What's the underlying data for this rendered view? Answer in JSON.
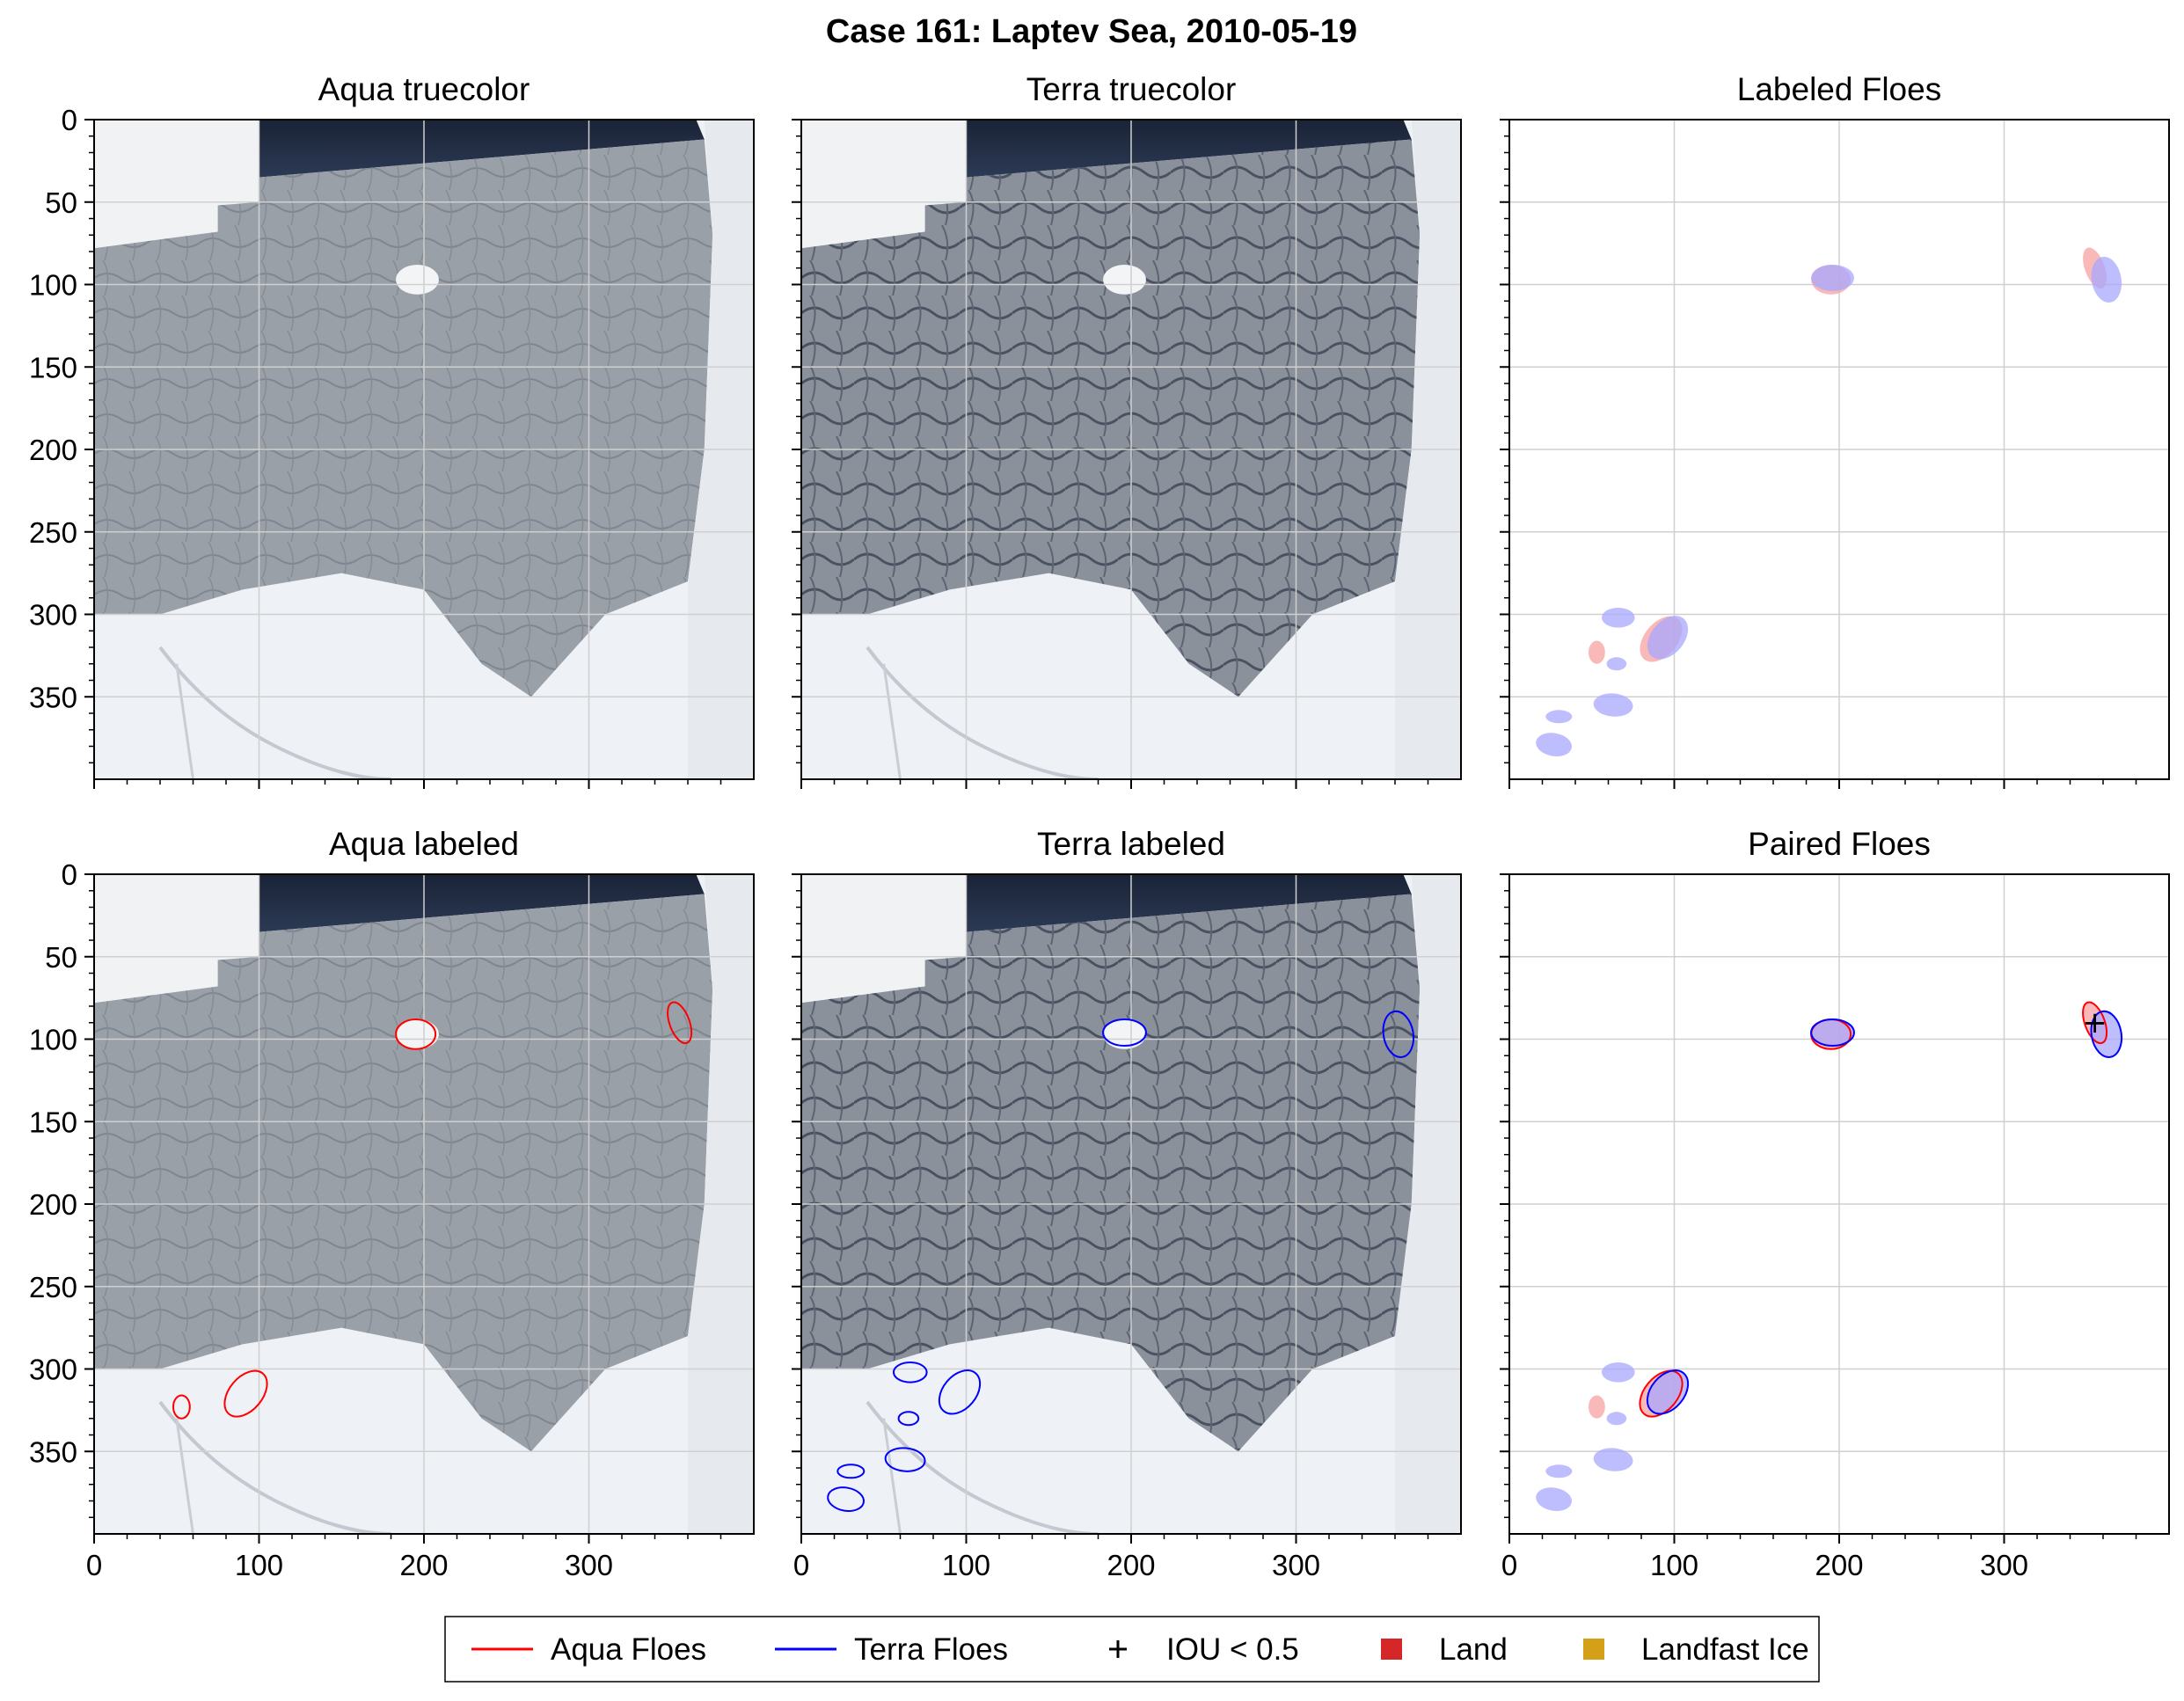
{
  "figure": {
    "title": "Case 161: Laptev Sea, 2010-05-19"
  },
  "panels": [
    {
      "title": "Aqua truecolor",
      "kind": "image",
      "variant": "aqua"
    },
    {
      "title": "Terra truecolor",
      "kind": "image",
      "variant": "terra"
    },
    {
      "title": "Labeled Floes",
      "kind": "masks"
    },
    {
      "title": "Aqua labeled",
      "kind": "image",
      "variant": "aqua",
      "outline": "aqua"
    },
    {
      "title": "Terra labeled",
      "kind": "image",
      "variant": "terra",
      "outline": "terra"
    },
    {
      "title": "Paired Floes",
      "kind": "paired"
    }
  ],
  "axes": {
    "x_ticks": [
      "0",
      "100",
      "200",
      "300"
    ],
    "y_ticks": [
      "0",
      "50",
      "100",
      "150",
      "200",
      "250",
      "300",
      "350"
    ],
    "xlim": [
      0,
      400
    ],
    "ylim": [
      400,
      0
    ],
    "grid": true
  },
  "legend": {
    "placement": "bottom-center",
    "items": [
      {
        "label": "Aqua Floes",
        "marker": "line",
        "color": "#ff0000"
      },
      {
        "label": "Terra Floes",
        "marker": "line",
        "color": "#0000ff"
      },
      {
        "label": "IOU < 0.5",
        "marker": "plus",
        "color": "#000000"
      },
      {
        "label": "Land",
        "marker": "square",
        "color": "#d62728"
      },
      {
        "label": "Landfast Ice",
        "marker": "square",
        "color": "#d4a017"
      }
    ]
  },
  "chart_data": {
    "type": "scatter",
    "xlim": [
      0,
      400
    ],
    "ylim": [
      400,
      0
    ],
    "aqua_floes": [
      {
        "x": 195,
        "y": 97
      },
      {
        "x": 355,
        "y": 90
      },
      {
        "x": 92,
        "y": 315
      },
      {
        "x": 53,
        "y": 323
      }
    ],
    "terra_floes": [
      {
        "x": 196,
        "y": 96
      },
      {
        "x": 362,
        "y": 97
      },
      {
        "x": 96,
        "y": 314
      },
      {
        "x": 66,
        "y": 302
      },
      {
        "x": 65,
        "y": 330
      },
      {
        "x": 63,
        "y": 355
      },
      {
        "x": 30,
        "y": 362
      },
      {
        "x": 27,
        "y": 379
      }
    ],
    "iou_below_threshold": [
      {
        "x": 355,
        "y": 90
      }
    ]
  },
  "colors": {
    "aqua": "#ff0000",
    "terra": "#0000ff",
    "aqua_fill": "#f8a8a8",
    "terra_fill": "#a8a8ff",
    "overlap_fill": "#c080d8",
    "grid": "#d0d0d0"
  }
}
